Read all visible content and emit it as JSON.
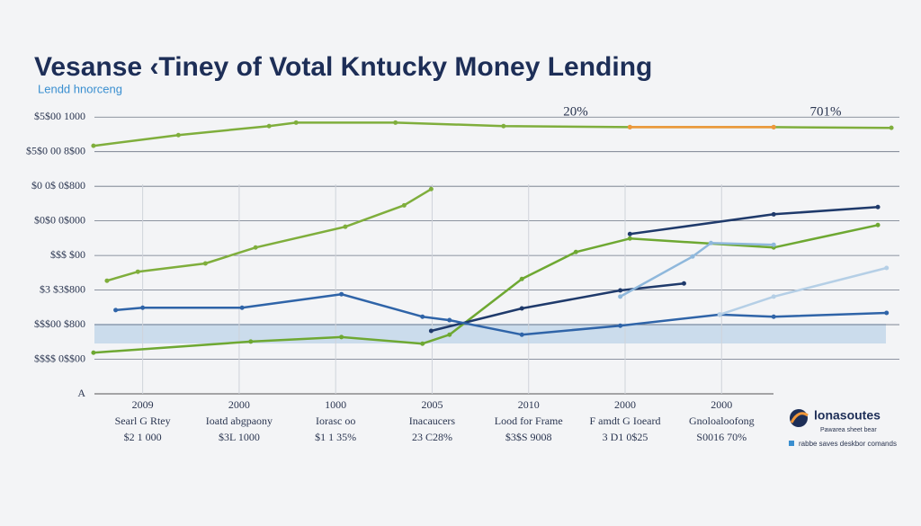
{
  "chart_data": {
    "type": "line",
    "title": "Vesanse ‹Tiney of Votal Kntucky Money Lending",
    "subtitle": "Lendd hnorceng",
    "categories": [
      "2009",
      "2000",
      "1000",
      "2005",
      "2010",
      "2000",
      "2000"
    ],
    "category_descriptions": [
      "Searl G Rtey",
      "Ioatd abgpaony",
      "Iorasc oo",
      "Inacaucers",
      "Lood for Frame",
      "F amdt G Ioeard",
      "Gnoloaloofong"
    ],
    "category_amounts": [
      "$2 1 000",
      "$3L 1000",
      "$1 1 35%",
      "23 C28%",
      "$3$S 9008",
      "3 D1 0$25",
      "S0016 70%"
    ],
    "annotations": [
      "20%",
      "701%"
    ],
    "logo": "lonasoutes",
    "logo_tagline": "Pawarea sheet bear",
    "footnote": "rabbe saves deskbor comands",
    "xlim": [
      -0.5,
      7.75
    ],
    "ylim": [
      0,
      8.5
    ],
    "yticks": [
      {
        "value": 0,
        "label": "A"
      },
      {
        "value": 1,
        "label": "$$$$ 0$$00"
      },
      {
        "value": 2,
        "label": "$$$00 $800"
      },
      {
        "value": 3,
        "label": "$3 $3$800"
      },
      {
        "value": 4,
        "label": "$$$ $00"
      },
      {
        "value": 5,
        "label": "$0$0 0$000"
      },
      {
        "value": 6,
        "label": "$0 0$ 0$800"
      },
      {
        "value": 7,
        "label": "$5$0 00 8$00"
      },
      {
        "value": 8,
        "label": "$5$00 1000"
      }
    ],
    "grid": true,
    "series": [
      {
        "color": "#7fae3c",
        "x": [
          -0.51,
          0.37,
          1.31,
          1.59,
          2.62,
          3.74,
          5.05,
          6.54,
          7.76
        ],
        "values": [
          7.17,
          7.48,
          7.74,
          7.84,
          7.84,
          7.74,
          7.71,
          7.71,
          7.69
        ]
      },
      {
        "color": "#f0973a",
        "x": [
          5.05,
          6.54
        ],
        "values": [
          7.71,
          7.71
        ]
      },
      {
        "color": "#7fae3c",
        "x": [
          -0.37,
          -0.05,
          0.65,
          1.17,
          2.1,
          2.71,
          2.99
        ],
        "values": [
          3.27,
          3.53,
          3.77,
          4.23,
          4.83,
          5.45,
          5.92
        ]
      },
      {
        "color": "#6ea832",
        "x": [
          -0.51,
          1.12,
          2.06,
          2.9,
          3.18,
          3.93,
          4.49,
          5.05,
          6.54,
          7.62
        ],
        "values": [
          1.19,
          1.51,
          1.64,
          1.45,
          1.71,
          3.32,
          4.1,
          4.49,
          4.23,
          4.88
        ]
      },
      {
        "color": "#1f3a6b",
        "x": [
          2.99,
          3.93,
          4.95,
          5.61
        ],
        "values": [
          1.82,
          2.47,
          2.99,
          3.19
        ]
      },
      {
        "color": "#1f3a6b",
        "x": [
          5.05,
          6.54,
          7.62
        ],
        "values": [
          4.62,
          5.19,
          5.4
        ]
      },
      {
        "color": "#2f64a8",
        "x": [
          -0.28,
          0,
          1.03,
          2.06,
          2.9,
          3.18,
          3.93,
          4.95,
          5.98,
          6.54,
          7.71
        ],
        "values": [
          2.42,
          2.49,
          2.49,
          2.88,
          2.23,
          2.13,
          1.71,
          1.97,
          2.29,
          2.23,
          2.34
        ]
      },
      {
        "color": "#8fb8dc",
        "x": [
          4.95,
          5.7,
          5.89,
          6.54
        ],
        "values": [
          2.81,
          3.97,
          4.36,
          4.31
        ]
      },
      {
        "color": "#b5cfe6",
        "x": [
          5.98,
          6.54,
          7.71
        ],
        "values": [
          2.29,
          2.81,
          3.64
        ]
      }
    ]
  }
}
